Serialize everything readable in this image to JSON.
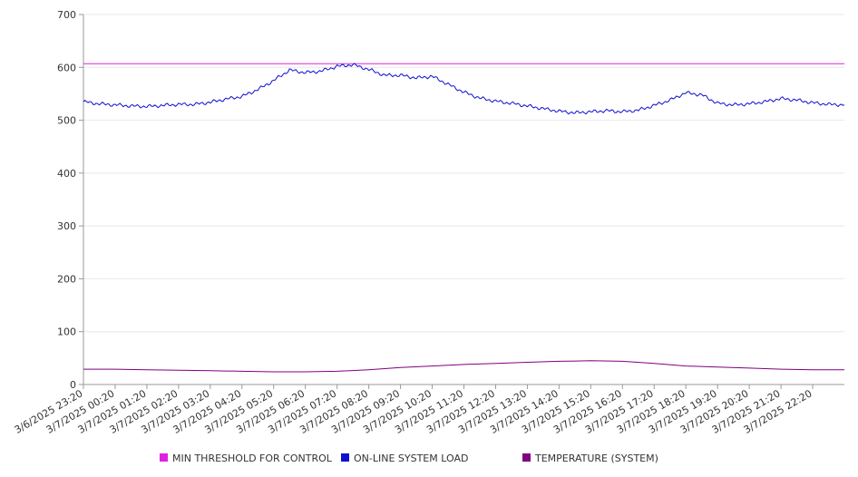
{
  "chart_data": {
    "type": "line",
    "title": "",
    "xlabel": "",
    "ylabel": "",
    "ylim": [
      0,
      700
    ],
    "yticks": [
      0,
      100,
      200,
      300,
      400,
      500,
      600,
      700
    ],
    "grid": true,
    "x_tick_labels": [
      "3/6/2025 23:20",
      "3/7/2025 00:20",
      "3/7/2025 01:20",
      "3/7/2025 02:20",
      "3/7/2025 03:20",
      "3/7/2025 04:20",
      "3/7/2025 05:20",
      "3/7/2025 06:20",
      "3/7/2025 07:20",
      "3/7/2025 08:20",
      "3/7/2025 09:20",
      "3/7/2025 10:20",
      "3/7/2025 11:20",
      "3/7/2025 12:20",
      "3/7/2025 13:20",
      "3/7/2025 14:20",
      "3/7/2025 15:20",
      "3/7/2025 16:20",
      "3/7/2025 17:20",
      "3/7/2025 18:20",
      "3/7/2025 19:20",
      "3/7/2025 20:20",
      "3/7/2025 21:20",
      "3/7/2025 22:20"
    ],
    "x_hours": [
      0,
      1,
      2,
      3,
      4,
      5,
      6,
      7,
      8,
      9,
      10,
      11,
      12,
      13,
      14,
      15,
      16,
      17,
      18,
      19,
      20,
      21,
      22,
      23
    ],
    "x_range_hours": [
      0,
      24
    ],
    "legend_position": "bottom",
    "series": [
      {
        "name": "MIN THRESHOLD FOR CONTROL",
        "color": "#e020e0",
        "x_hours": [
          0,
          24
        ],
        "values": [
          607,
          607
        ]
      },
      {
        "name": "ON-LINE SYSTEM LOAD",
        "color": "#1010d0",
        "x_hours": [
          0,
          0.5,
          1,
          1.5,
          2,
          2.5,
          3,
          3.5,
          4,
          4.5,
          5,
          5.5,
          6,
          6.5,
          7,
          7.5,
          8,
          8.5,
          9,
          9.5,
          10,
          10.5,
          11,
          11.5,
          12,
          12.5,
          13,
          13.5,
          14,
          14.5,
          15,
          15.5,
          16,
          16.5,
          17,
          17.5,
          18,
          18.5,
          19,
          19.5,
          20,
          20.5,
          21,
          21.5,
          22,
          22.5,
          23,
          23.5,
          24
        ],
        "values": [
          535,
          531,
          529,
          527,
          526,
          528,
          530,
          530,
          534,
          540,
          545,
          558,
          575,
          595,
          590,
          593,
          602,
          605,
          596,
          585,
          585,
          580,
          583,
          568,
          553,
          542,
          536,
          532,
          527,
          522,
          517,
          514,
          516,
          518,
          516,
          519,
          528,
          538,
          552,
          548,
          532,
          529,
          531,
          535,
          541,
          538,
          533,
          530,
          529
        ]
      },
      {
        "name": "TEMPERATURE (SYSTEM)",
        "color": "#800080",
        "x_hours": [
          0,
          1,
          2,
          3,
          4,
          5,
          6,
          7,
          8,
          9,
          10,
          11,
          12,
          13,
          14,
          15,
          16,
          17,
          18,
          19,
          20,
          21,
          22,
          23,
          24
        ],
        "values": [
          29,
          29,
          28,
          27,
          26,
          25,
          24,
          24,
          25,
          28,
          32,
          35,
          38,
          40,
          42,
          44,
          45,
          44,
          40,
          35,
          33,
          31,
          29,
          28,
          28
        ]
      }
    ]
  }
}
